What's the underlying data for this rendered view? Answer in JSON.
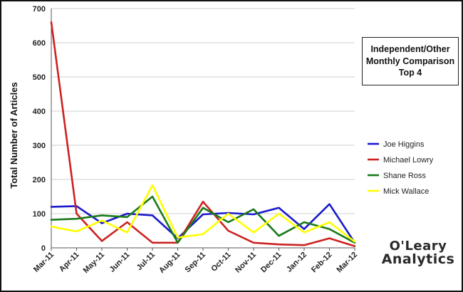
{
  "chart_data": {
    "type": "line",
    "title_lines": [
      "Independent/Other",
      "Monthly Comparison",
      "Top 4"
    ],
    "xlabel": "",
    "ylabel": "Total Number of Articles",
    "ylim": [
      0,
      700
    ],
    "yticks": [
      0,
      100,
      200,
      300,
      400,
      500,
      600,
      700
    ],
    "categories": [
      "Mar-11",
      "Apr-11",
      "May-11",
      "Jun-11",
      "Jul-11",
      "Aug-11",
      "Sep-11",
      "Oct-11",
      "Nov-11",
      "Dec-11",
      "Jan-12",
      "Feb-12",
      "Mar-12"
    ],
    "grid": "horizontal",
    "legend_position": "right",
    "series": [
      {
        "name": "Joe Higgins",
        "color": "#1a1acc",
        "values": [
          120,
          122,
          72,
          100,
          95,
          28,
          98,
          102,
          98,
          117,
          55,
          128,
          15
        ]
      },
      {
        "name": "Michael Lowry",
        "color": "#cc2222",
        "values": [
          660,
          100,
          20,
          75,
          15,
          15,
          135,
          50,
          15,
          10,
          8,
          28,
          5
        ]
      },
      {
        "name": "Shane Ross",
        "color": "#1a7a1a",
        "values": [
          82,
          85,
          95,
          90,
          150,
          15,
          117,
          75,
          113,
          35,
          75,
          55,
          15
        ]
      },
      {
        "name": "Mick Wallace",
        "color": "#ffff00",
        "values": [
          62,
          48,
          80,
          45,
          183,
          30,
          40,
          100,
          45,
          100,
          45,
          75,
          18
        ]
      }
    ]
  },
  "logo": {
    "line1": "O'Leary",
    "line2": "Analytics"
  }
}
